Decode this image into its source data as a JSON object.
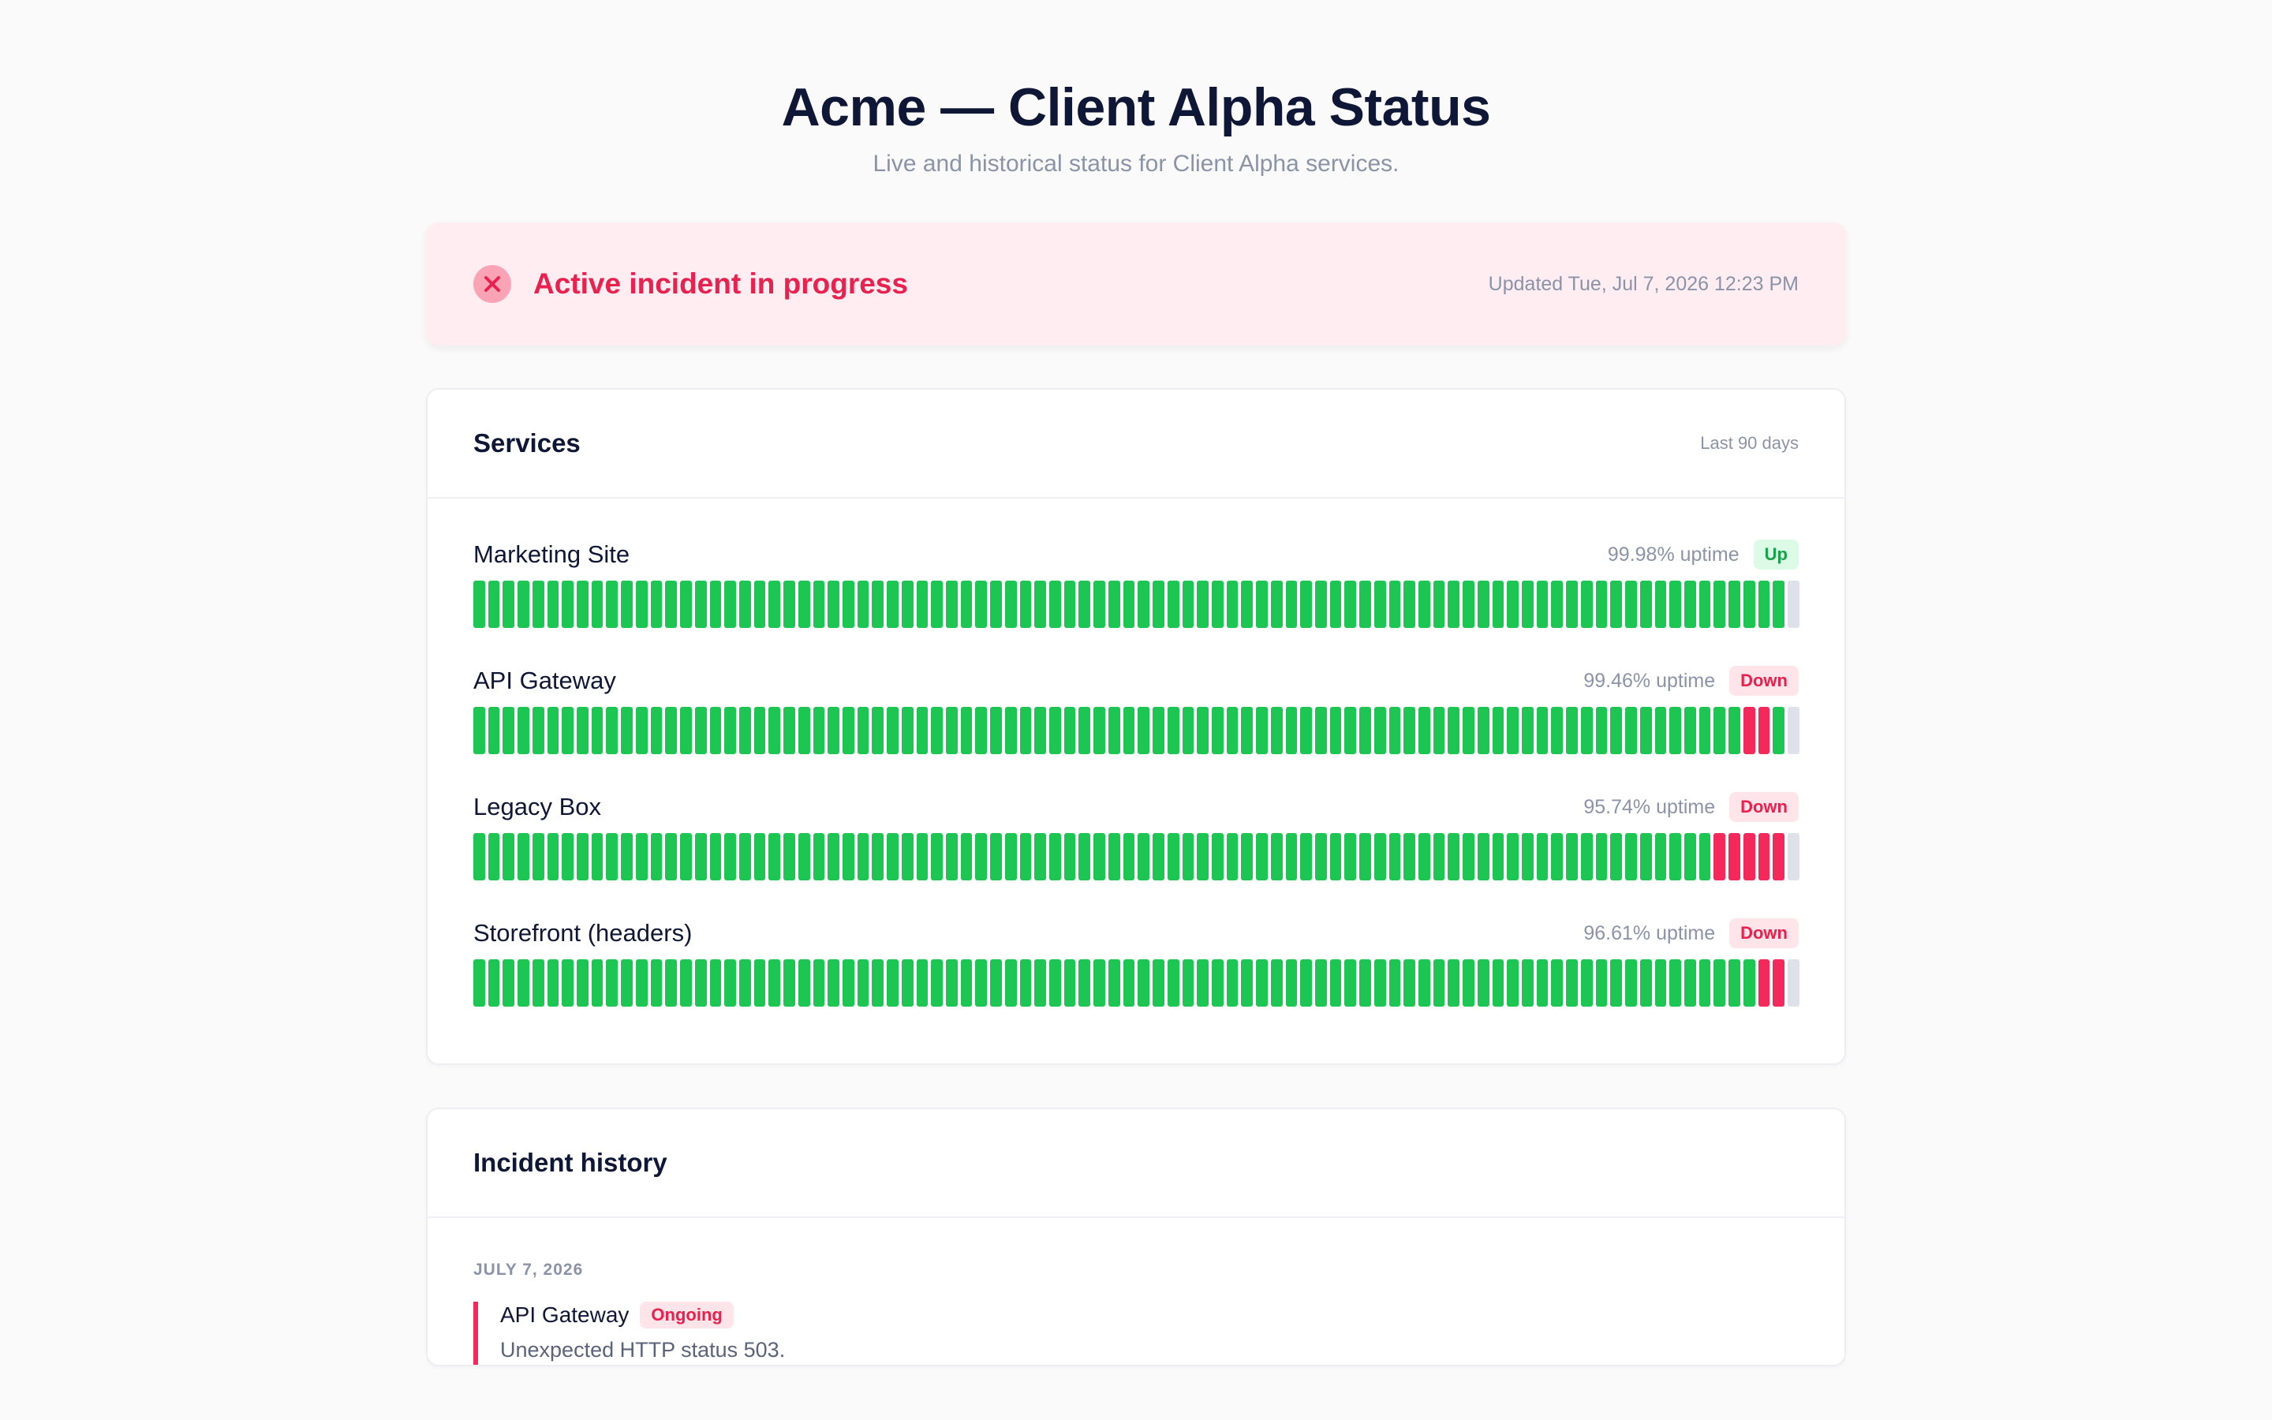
{
  "page": {
    "title": "Acme — Client Alpha Status",
    "subtitle": "Live and historical status for Client Alpha services."
  },
  "banner": {
    "title": "Active incident in progress",
    "updated": "Updated Tue, Jul 7, 2026 12:23 PM",
    "icon": "x-circle-icon",
    "color": "#e8214f"
  },
  "services": {
    "title": "Services",
    "range": "Last 90 days",
    "colors": {
      "up": "#1dc653",
      "down": "#f2295a",
      "nodata": "#dfe1ea"
    },
    "items": [
      {
        "name": "Marketing Site",
        "uptime": "99.98% uptime",
        "status": "Up",
        "status_kind": "up",
        "days_total": 90,
        "down_days": [],
        "trailing_nodata": 1
      },
      {
        "name": "API Gateway",
        "uptime": "99.46% uptime",
        "status": "Down",
        "status_kind": "down",
        "days_total": 90,
        "down_days": [
          86,
          87
        ],
        "trailing_nodata": 1
      },
      {
        "name": "Legacy Box",
        "uptime": "95.74% uptime",
        "status": "Down",
        "status_kind": "down",
        "days_total": 90,
        "down_days": [
          84,
          85,
          86,
          87,
          88,
          89
        ],
        "trailing_nodata": 1
      },
      {
        "name": "Storefront (headers)",
        "uptime": "96.61% uptime",
        "status": "Down",
        "status_kind": "down",
        "days_total": 90,
        "down_days": [
          87,
          88,
          89
        ],
        "trailing_nodata": 1
      }
    ]
  },
  "incidents": {
    "title": "Incident history",
    "groups": [
      {
        "date": "JULY 7, 2026",
        "items": [
          {
            "service": "API Gateway",
            "status": "Ongoing",
            "description": "Unexpected HTTP status 503."
          }
        ]
      }
    ]
  }
}
